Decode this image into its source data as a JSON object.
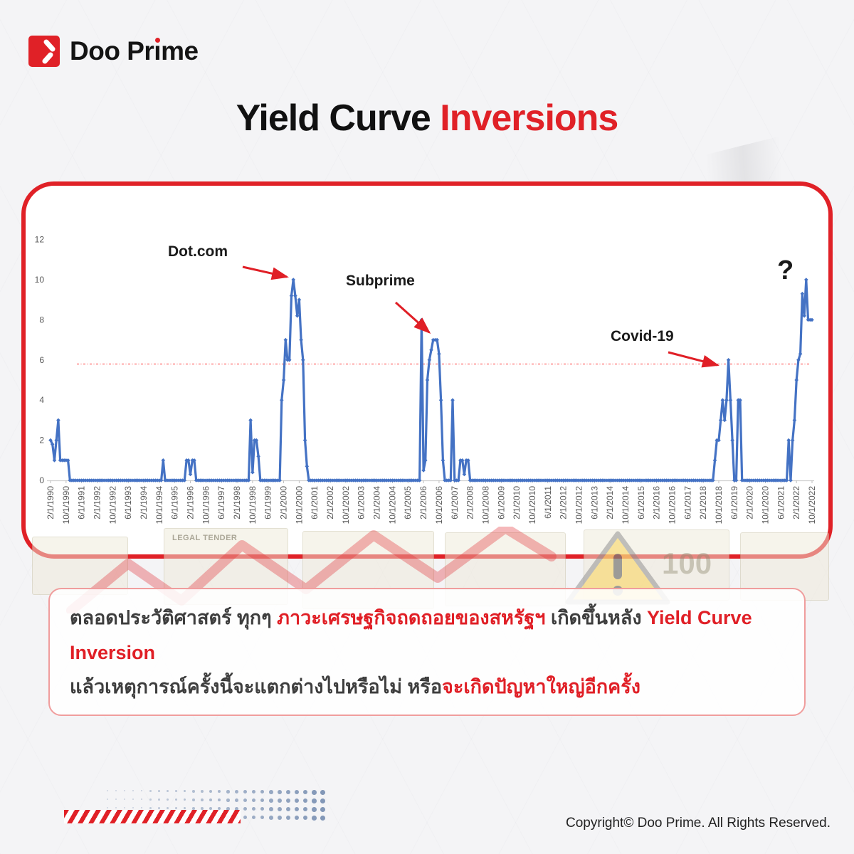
{
  "brand": {
    "name": "Doo Prime",
    "pre": "Doo Pr",
    "i": "ı",
    "post": "me"
  },
  "title": {
    "black": "Yield Curve ",
    "red": "Inversions"
  },
  "chart_data": {
    "type": "line",
    "title": "Yield Curve Inversions",
    "line_color": "#4472c4",
    "ylim": [
      0,
      12
    ],
    "y_ticks": [
      0,
      2,
      4,
      6,
      8,
      10,
      12
    ],
    "x_tick_every": 8,
    "x_tick_labels": [
      "2/1/1990",
      "10/1/1990",
      "6/1/1991",
      "2/1/1992",
      "10/1/1992",
      "6/1/1993",
      "2/1/1994",
      "10/1/1994",
      "6/1/1995",
      "2/1/1996",
      "10/1/1996",
      "6/1/1997",
      "2/1/1998",
      "10/1/1998",
      "6/1/1999",
      "2/1/2000",
      "10/1/2000",
      "6/1/2001",
      "2/1/2002",
      "10/1/2002",
      "6/1/2003",
      "2/1/2004",
      "10/1/2004",
      "6/1/2005",
      "2/1/2006",
      "10/1/2006",
      "6/1/2007",
      "2/1/2008",
      "10/1/2008",
      "6/1/2009",
      "2/1/2010",
      "10/1/2010",
      "6/1/2011",
      "2/1/2012",
      "10/1/2012",
      "6/1/2013",
      "2/1/2014",
      "10/1/2014",
      "6/1/2015",
      "2/1/2016",
      "10/1/2016",
      "6/1/2017",
      "2/1/2018",
      "10/1/2018",
      "6/1/2019",
      "2/1/2020",
      "10/1/2020",
      "6/1/2021",
      "2/1/2022",
      "10/1/2022"
    ],
    "threshold_line": {
      "value": 5.8,
      "color": "#ff1a1a",
      "style": "dash-dot"
    },
    "values_rle": [
      [
        2,
        1
      ],
      [
        1.8,
        1
      ],
      [
        1,
        1
      ],
      [
        2,
        1
      ],
      [
        3,
        1
      ],
      [
        1,
        5
      ],
      [
        0,
        48
      ],
      [
        1,
        1
      ],
      [
        0,
        11
      ],
      [
        1,
        2
      ],
      [
        0.3,
        1
      ],
      [
        1,
        2
      ],
      [
        0,
        28
      ],
      [
        3,
        1
      ],
      [
        0.4,
        1
      ],
      [
        2,
        2
      ],
      [
        1.2,
        1
      ],
      [
        0,
        11
      ],
      [
        4,
        1
      ],
      [
        5,
        1
      ],
      [
        7,
        1
      ],
      [
        6,
        2
      ],
      [
        9.2,
        1
      ],
      [
        10,
        1
      ],
      [
        9.2,
        1
      ],
      [
        8.2,
        1
      ],
      [
        9,
        1
      ],
      [
        7,
        1
      ],
      [
        6,
        1
      ],
      [
        2,
        1
      ],
      [
        0.7,
        1
      ],
      [
        0,
        58
      ],
      [
        8,
        1
      ],
      [
        0.5,
        1
      ],
      [
        1,
        1
      ],
      [
        5,
        1
      ],
      [
        6,
        1
      ],
      [
        6.5,
        1
      ],
      [
        7,
        3
      ],
      [
        6.3,
        1
      ],
      [
        4,
        1
      ],
      [
        1,
        1
      ],
      [
        0,
        4
      ],
      [
        4,
        1
      ],
      [
        0,
        3
      ],
      [
        1,
        2
      ],
      [
        0.3,
        1
      ],
      [
        1,
        2
      ],
      [
        0,
        126
      ],
      [
        1,
        1
      ],
      [
        2,
        2
      ],
      [
        3,
        1
      ],
      [
        4,
        1
      ],
      [
        3,
        1
      ],
      [
        4,
        1
      ],
      [
        6,
        1
      ],
      [
        4,
        1
      ],
      [
        2,
        1
      ],
      [
        0,
        2
      ],
      [
        4,
        2
      ],
      [
        0,
        24
      ],
      [
        2,
        1
      ],
      [
        0,
        1
      ],
      [
        2,
        1
      ],
      [
        3,
        1
      ],
      [
        5,
        1
      ],
      [
        6,
        1
      ],
      [
        6.3,
        1
      ],
      [
        9.3,
        1
      ],
      [
        8.2,
        1
      ],
      [
        10,
        1
      ],
      [
        8,
        3
      ]
    ],
    "annotations": [
      {
        "label": "Dot.com",
        "point_index": 125,
        "value": 10
      },
      {
        "label": "Subprime",
        "point_index": 198,
        "value": 7
      },
      {
        "label": "Covid-19",
        "point_index": 349,
        "value": 6
      },
      {
        "label": "?",
        "point_index": 389,
        "value": 10
      }
    ]
  },
  "caption": {
    "part1_dark": "ตลอดประวัติศาสตร์ ทุกๆ ",
    "part2_red": "ภาวะเศรษฐกิจถดถอยของสหรัฐฯ",
    "part3_dark": " เกิดขึ้นหลัง ",
    "part4_red": "Yield Curve Inversion",
    "line2_dark": "แล้วเหตุการณ์ครั้งนี้จะแตกต่างไปหรือไม่ หรือ",
    "line2_red": "จะเกิดปัญหาใหญ่อีกครั้ง"
  },
  "decor": {
    "legal_tender": "LEGAL TENDER",
    "hundred": "100"
  },
  "footer": {
    "copyright": "Copyright© Doo Prime. All Rights Reserved."
  },
  "colors": {
    "brand_red": "#e02127",
    "line_blue": "#4472c4",
    "dark_text": "#3e3e3e",
    "caption_border": "#f09d9d"
  }
}
